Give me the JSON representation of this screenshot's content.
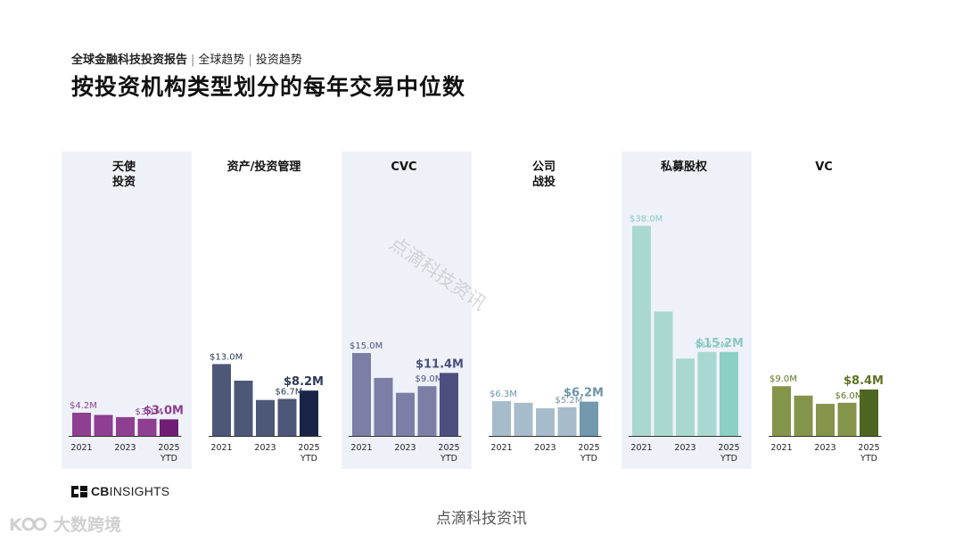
{
  "header": {
    "breadcrumb_main": "全球金融科技投资报告",
    "breadcrumb_sep": "|",
    "breadcrumb_2": "全球趋势",
    "breadcrumb_3": "投资趋势",
    "title": "按投资机构类型划分的每年交易中位数"
  },
  "branding": {
    "logo_text_bold": "CB",
    "logo_text_rest": "INSIGHTS",
    "footer_watermark": "点滴科技资讯",
    "corner_watermark": "大数跨境",
    "diagonal_watermark": "点滴科技资讯"
  },
  "chart_data": {
    "type": "bar",
    "title": "按投资机构类型划分的每年交易中位数",
    "categories": [
      "2021",
      "2022",
      "2023",
      "2024",
      "2025 YTD"
    ],
    "tick_labels": [
      "2021",
      "2023",
      "2025"
    ],
    "ytd_label": "YTD",
    "unit": "$M",
    "panels": [
      {
        "name": "天使投资",
        "title_lines": [
          "天使",
          "投资"
        ],
        "values": [
          4.2,
          3.8,
          3.4,
          3.1,
          3.0
        ],
        "labels": [
          "$4.2M",
          null,
          null,
          "$3.1M",
          "$3.0M"
        ],
        "color": "#8e3f92",
        "last_color": "#6f1e74",
        "label_color": "#8e3f92",
        "shaded": true
      },
      {
        "name": "资产/投资管理",
        "title_lines": [
          "资产/投资管理"
        ],
        "values": [
          13.0,
          10.0,
          6.5,
          6.7,
          8.2
        ],
        "labels": [
          "$13.0M",
          null,
          null,
          "$6.7M",
          "$8.2M"
        ],
        "color": "#4d5878",
        "last_color": "#192448",
        "label_color": "#2e3a5a",
        "shaded": false
      },
      {
        "name": "CVC",
        "title_lines": [
          "CVC"
        ],
        "values": [
          15.0,
          10.5,
          7.8,
          9.0,
          11.4
        ],
        "labels": [
          "$15.0M",
          null,
          null,
          "$9.0M",
          "$11.4M"
        ],
        "color": "#7c7ea6",
        "last_color": "#4d4f80",
        "label_color": "#4d4f80",
        "shaded": true
      },
      {
        "name": "公司战投",
        "title_lines": [
          "公司",
          "战投"
        ],
        "values": [
          6.3,
          6.0,
          5.0,
          5.2,
          6.2
        ],
        "labels": [
          "$6.3M",
          null,
          null,
          "$5.2M",
          "$6.2M"
        ],
        "color": "#a7bccb",
        "last_color": "#7299ae",
        "label_color": "#6f93a8",
        "shaded": false
      },
      {
        "name": "私募股权",
        "title_lines": [
          "私募股权"
        ],
        "values": [
          38.0,
          22.5,
          14.0,
          15.2,
          15.2
        ],
        "labels": [
          "$38.0M",
          null,
          null,
          "$15.2M",
          "$15.2M"
        ],
        "color": "#a9d8d0",
        "last_color": "#8ccfc4",
        "label_color": "#8cc9bf",
        "shaded": true
      },
      {
        "name": "VC",
        "title_lines": [
          "VC"
        ],
        "values": [
          9.0,
          7.3,
          5.8,
          6.0,
          8.4
        ],
        "labels": [
          "$9.0M",
          null,
          null,
          "$6.0M",
          "$8.4M"
        ],
        "color": "#85944b",
        "last_color": "#4c6520",
        "label_color": "#5d7424",
        "shaded": false
      }
    ]
  }
}
